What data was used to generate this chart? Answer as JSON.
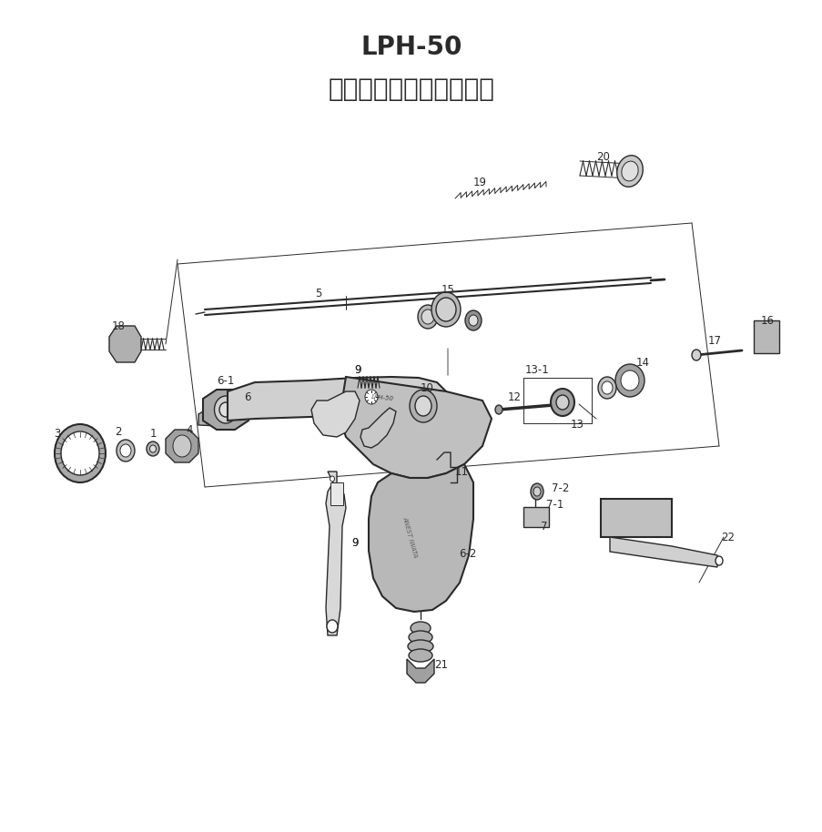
{
  "title_line1": "LPH-50",
  "title_line2": "超小形低圧スプレーガン",
  "bg_color": "#ffffff",
  "line_color": "#2a2a2a",
  "title_fontsize": 20,
  "subtitle_fontsize": 20,
  "label_fontsize": 8.5,
  "fig_width": 9.04,
  "fig_height": 9.14,
  "dpi": 100
}
